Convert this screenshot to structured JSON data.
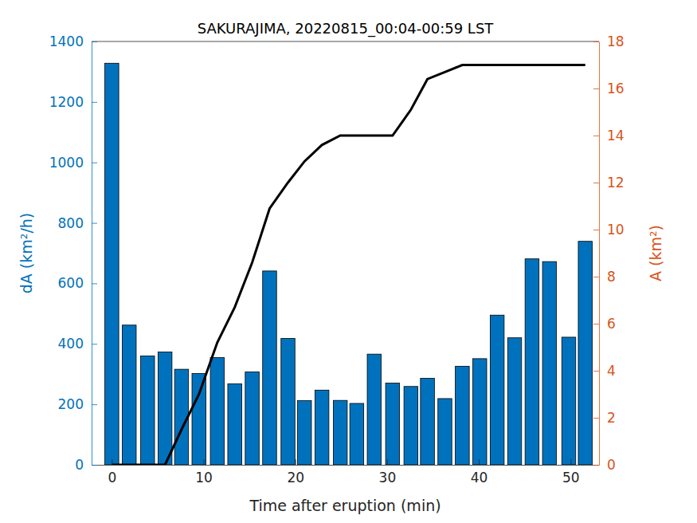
{
  "chart_data": {
    "type": "bar",
    "title": "SAKURAJIMA, 20220815_00:04-00:59 LST",
    "x_label": "Time after eruption (min)",
    "y_label": "dA (km²/h)",
    "y2_label": "A (km²)",
    "x": [
      0,
      1.9,
      3.9,
      5.8,
      7.6,
      9.5,
      11.5,
      13.4,
      15.3,
      17.2,
      19.2,
      21.0,
      22.9,
      24.9,
      26.7,
      28.6,
      30.6,
      32.6,
      34.4,
      36.3,
      38.2,
      40.1,
      42.0,
      43.9,
      45.8,
      47.7,
      49.8,
      51.6
    ],
    "xlim": [
      -2.2,
      53.1
    ],
    "xticks": [
      0,
      10,
      20,
      30,
      40,
      50
    ],
    "ylim": [
      0,
      1400
    ],
    "yticks": [
      0,
      200,
      400,
      600,
      800,
      1000,
      1200,
      1400
    ],
    "y2lim": [
      0,
      18
    ],
    "y2ticks": [
      0,
      2,
      4,
      6,
      8,
      10,
      12,
      14,
      16,
      18
    ],
    "series": [
      {
        "type": "bar",
        "color": "#0072BD",
        "values": [
          1328,
          462,
          360,
          373,
          316,
          302,
          355,
          268,
          307,
          641,
          418,
          212,
          247,
          213,
          203,
          366,
          270,
          259,
          286,
          219,
          326,
          351,
          495,
          420,
          681,
          672,
          422,
          739
        ]
      },
      {
        "type": "line",
        "axis": "y2",
        "color": "#000000",
        "values": [
          0,
          0,
          0,
          0,
          1.5,
          3.0,
          5.2,
          6.7,
          8.6,
          10.9,
          12.0,
          12.9,
          13.6,
          14.0,
          14.0,
          14.0,
          14.0,
          15.1,
          16.4,
          16.7,
          17.0,
          17.0,
          17.0,
          17.0,
          17.0,
          17.0,
          17.0,
          17.0
        ]
      }
    ]
  }
}
